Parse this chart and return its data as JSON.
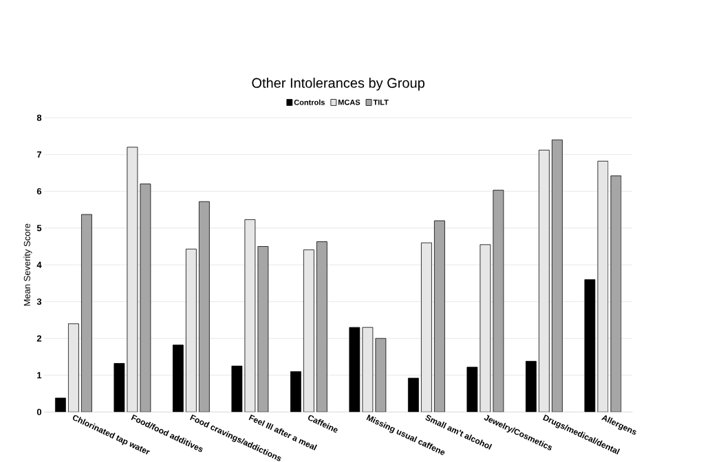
{
  "chart_data": {
    "type": "bar",
    "title": "Other Intolerances by Group",
    "ylabel": "Mean Severity Score",
    "categories": [
      "Chlorinated tap water",
      "Food/food additives",
      "Food cravings/addictions",
      "Feel Ill after a  meal",
      "Caffeine",
      "Missing usual caffene",
      "Small am't alcohol",
      "Jewelry/Cosmetics",
      "Drugs/medical/dental",
      "Allergens"
    ],
    "series": [
      {
        "name": "Controls",
        "color": "#000000",
        "values": [
          0.38,
          1.32,
          1.82,
          1.25,
          1.1,
          2.3,
          0.92,
          1.22,
          1.38,
          3.6
        ]
      },
      {
        "name": "MCAS",
        "color": "#e6e6e6",
        "values": [
          2.4,
          7.2,
          4.43,
          5.23,
          4.41,
          2.3,
          4.6,
          4.55,
          7.12,
          6.82
        ]
      },
      {
        "name": "TILT",
        "color": "#a6a6a6",
        "values": [
          5.37,
          6.2,
          5.72,
          4.5,
          4.63,
          2.0,
          5.2,
          6.03,
          7.4,
          6.42
        ]
      }
    ],
    "ylim": [
      0,
      8
    ],
    "yticks": [
      0,
      1,
      2,
      3,
      4,
      5,
      6,
      7,
      8
    ],
    "grid": "y",
    "legend": "top"
  }
}
